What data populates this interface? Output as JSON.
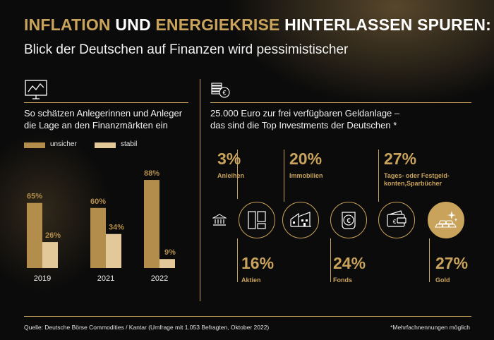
{
  "header": {
    "title_part1": "INFLATION",
    "title_part2": " UND ",
    "title_part3": "ENERGIEKRISE",
    "title_part4": " HINTERLASSEN SPUREN:",
    "subtitle": "Blick der Deutschen auf Finanzen wird pessimistischer"
  },
  "left_section": {
    "icon": "chart-board-icon",
    "text_line1": "So schätzen Anlegerinnen und Anleger",
    "text_line2": "die Lage an den Finanzmärkten ein"
  },
  "right_section": {
    "icon": "euro-coins-icon",
    "text_line1": "25.000 Euro zur frei verfügbaren Geldanlage –",
    "text_line2": "das sind die Top Investments der Deutschen *"
  },
  "chart_data": {
    "type": "bar",
    "categories": [
      "2019",
      "2021",
      "2022"
    ],
    "series": [
      {
        "name": "unsicher",
        "values": [
          65,
          60,
          88
        ],
        "labels": [
          "65%",
          "60%",
          "88%"
        ]
      },
      {
        "name": "stabil",
        "values": [
          26,
          34,
          9
        ],
        "labels": [
          "26%",
          "34%",
          "9%"
        ]
      }
    ],
    "ylim": [
      0,
      100
    ],
    "legend": "top-left",
    "colors": {
      "unsicher": "#b28d4c",
      "stabil": "#e3c99a"
    }
  },
  "investments": [
    {
      "pct": "3%",
      "label_line1": "Anleihen",
      "label_line2": "",
      "icon": "bank-building-icon"
    },
    {
      "pct": "16%",
      "label_line1": "Aktien",
      "label_line2": "",
      "icon": "document-icon"
    },
    {
      "pct": "20%",
      "label_line1": "Immobilien",
      "label_line2": "",
      "icon": "house-icon"
    },
    {
      "pct": "24%",
      "label_line1": "Fonds",
      "label_line2": "",
      "icon": "euro-jar-icon"
    },
    {
      "pct": "27%",
      "label_line1": "Tages- oder Festgeld-",
      "label_line2": "konten,Sparbücher",
      "icon": "wallet-icon"
    },
    {
      "pct": "27%",
      "label_line1": "Gold",
      "label_line2": "",
      "icon": "gold-bars-icon"
    }
  ],
  "footer": {
    "source": "Quelle: Deutsche Börse Commodities / Kantar (Umfrage mit 1.053 Befragten, Oktober 2022)",
    "note": "*Mehrfachnennungen möglich"
  },
  "colors": {
    "gold": "#c9a35b",
    "background": "#0b0b0b",
    "text": "#ffffff"
  }
}
